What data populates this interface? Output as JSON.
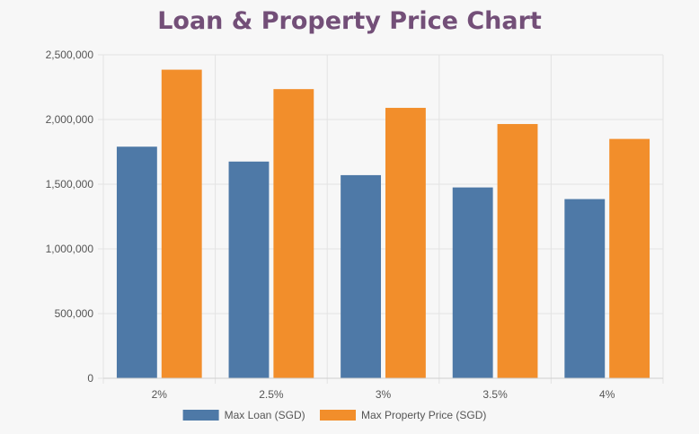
{
  "colors": {
    "max_loan": "#4e79a7",
    "max_property": "#f28e2b",
    "title": "#734f78",
    "grid": "#e3e3e3"
  },
  "chart_data": {
    "type": "bar",
    "title": "Loan & Property Price Chart",
    "xlabel": "",
    "ylabel": "",
    "categories": [
      "2%",
      "2.5%",
      "3%",
      "3.5%",
      "4%"
    ],
    "series": [
      {
        "name": "Max Loan (SGD)",
        "values": [
          1790000,
          1675000,
          1570000,
          1475000,
          1385000
        ]
      },
      {
        "name": "Max Property Price (SGD)",
        "values": [
          2385000,
          2235000,
          2090000,
          1965000,
          1850000
        ]
      }
    ],
    "ylim": [
      0,
      2500000
    ],
    "yticks": [
      0,
      500000,
      1000000,
      1500000,
      2000000,
      2500000
    ],
    "ytick_labels": [
      "0",
      "500,000",
      "1,000,000",
      "1,500,000",
      "2,000,000",
      "2,500,000"
    ],
    "grid": true,
    "legend_position": "bottom"
  }
}
